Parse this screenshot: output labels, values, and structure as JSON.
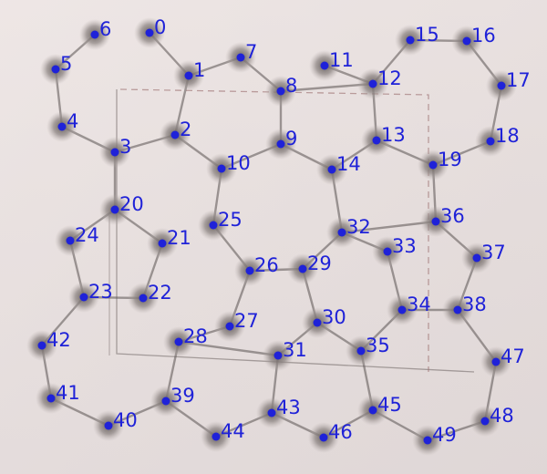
{
  "palette": {
    "paper": "#e8e0df",
    "ink": "#5a5352",
    "blob": "#8a8280",
    "dot": "#1f22d8",
    "label": "#1f22d8",
    "dashed_box": "#9a6c6c"
  },
  "nodes": [
    {
      "id": "0",
      "label": "0"
    },
    {
      "id": "1",
      "label": "1"
    },
    {
      "id": "2",
      "label": "2"
    },
    {
      "id": "3",
      "label": "3"
    },
    {
      "id": "4",
      "label": "4"
    },
    {
      "id": "5",
      "label": "5"
    },
    {
      "id": "6",
      "label": "6"
    },
    {
      "id": "7",
      "label": "7"
    },
    {
      "id": "8",
      "label": "8"
    },
    {
      "id": "9",
      "label": "9"
    },
    {
      "id": "10",
      "label": "10"
    },
    {
      "id": "11",
      "label": "11"
    },
    {
      "id": "12",
      "label": "12"
    },
    {
      "id": "13",
      "label": "13"
    },
    {
      "id": "14",
      "label": "14"
    },
    {
      "id": "15",
      "label": "15"
    },
    {
      "id": "16",
      "label": "16"
    },
    {
      "id": "17",
      "label": "17"
    },
    {
      "id": "18",
      "label": "18"
    },
    {
      "id": "19",
      "label": "19"
    },
    {
      "id": "20",
      "label": "20"
    },
    {
      "id": "21",
      "label": "21"
    },
    {
      "id": "22",
      "label": "22"
    },
    {
      "id": "23",
      "label": "23"
    },
    {
      "id": "24",
      "label": "24"
    },
    {
      "id": "25",
      "label": "25"
    },
    {
      "id": "26",
      "label": "26"
    },
    {
      "id": "27",
      "label": "27"
    },
    {
      "id": "28",
      "label": "28"
    },
    {
      "id": "29",
      "label": "29"
    },
    {
      "id": "30",
      "label": "30"
    },
    {
      "id": "31",
      "label": "31"
    },
    {
      "id": "32",
      "label": "32"
    },
    {
      "id": "33",
      "label": "33"
    },
    {
      "id": "34",
      "label": "34"
    },
    {
      "id": "35",
      "label": "35"
    },
    {
      "id": "36",
      "label": "36"
    },
    {
      "id": "37",
      "label": "37"
    },
    {
      "id": "38",
      "label": "38"
    },
    {
      "id": "39",
      "label": "39"
    },
    {
      "id": "40",
      "label": "40"
    },
    {
      "id": "41",
      "label": "41"
    },
    {
      "id": "42",
      "label": "42"
    },
    {
      "id": "43",
      "label": "43"
    },
    {
      "id": "44",
      "label": "44"
    },
    {
      "id": "45",
      "label": "45"
    },
    {
      "id": "46",
      "label": "46"
    },
    {
      "id": "47",
      "label": "47"
    },
    {
      "id": "48",
      "label": "48"
    },
    {
      "id": "49",
      "label": "49"
    }
  ],
  "edges": [
    [
      "0",
      "1"
    ],
    [
      "1",
      "2"
    ],
    [
      "1",
      "7"
    ],
    [
      "7",
      "8"
    ],
    [
      "8",
      "9"
    ],
    [
      "9",
      "10"
    ],
    [
      "2",
      "10"
    ],
    [
      "2",
      "3"
    ],
    [
      "3",
      "4"
    ],
    [
      "4",
      "5"
    ],
    [
      "5",
      "6"
    ],
    [
      "3",
      "20"
    ],
    [
      "20",
      "24"
    ],
    [
      "20",
      "21"
    ],
    [
      "24",
      "23"
    ],
    [
      "21",
      "22"
    ],
    [
      "23",
      "22"
    ],
    [
      "23",
      "42"
    ],
    [
      "42",
      "41"
    ],
    [
      "41",
      "40"
    ],
    [
      "40",
      "39"
    ],
    [
      "39",
      "28"
    ],
    [
      "28",
      "27"
    ],
    [
      "27",
      "26"
    ],
    [
      "26",
      "25"
    ],
    [
      "25",
      "10"
    ],
    [
      "26",
      "29"
    ],
    [
      "29",
      "30"
    ],
    [
      "30",
      "31"
    ],
    [
      "31",
      "28"
    ],
    [
      "31",
      "43"
    ],
    [
      "43",
      "44"
    ],
    [
      "44",
      "39"
    ],
    [
      "43",
      "46"
    ],
    [
      "46",
      "45"
    ],
    [
      "45",
      "35"
    ],
    [
      "35",
      "30"
    ],
    [
      "35",
      "34"
    ],
    [
      "34",
      "33"
    ],
    [
      "33",
      "32"
    ],
    [
      "32",
      "29"
    ],
    [
      "32",
      "14"
    ],
    [
      "14",
      "9"
    ],
    [
      "14",
      "13"
    ],
    [
      "13",
      "12"
    ],
    [
      "12",
      "8"
    ],
    [
      "12",
      "11"
    ],
    [
      "12",
      "15"
    ],
    [
      "15",
      "16"
    ],
    [
      "16",
      "17"
    ],
    [
      "17",
      "18"
    ],
    [
      "18",
      "19"
    ],
    [
      "19",
      "13"
    ],
    [
      "19",
      "36"
    ],
    [
      "36",
      "32"
    ],
    [
      "36",
      "37"
    ],
    [
      "37",
      "38"
    ],
    [
      "38",
      "34"
    ],
    [
      "38",
      "47"
    ],
    [
      "47",
      "48"
    ],
    [
      "48",
      "49"
    ],
    [
      "49",
      "45"
    ]
  ]
}
